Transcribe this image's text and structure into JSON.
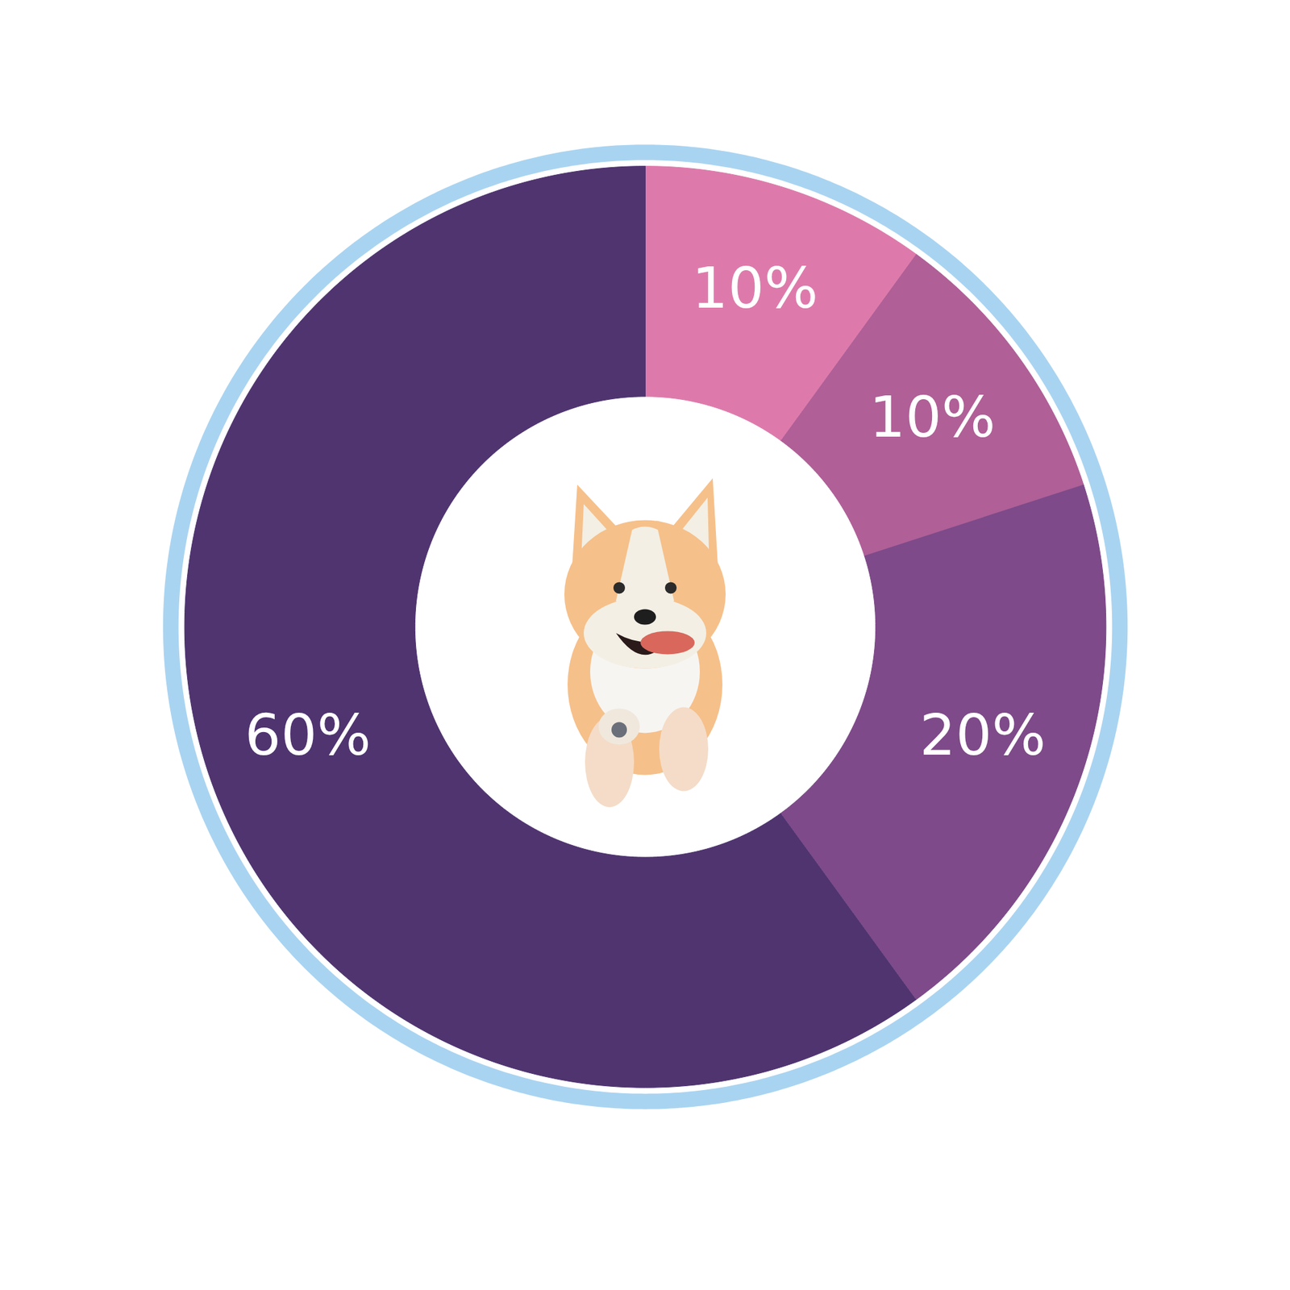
{
  "chart_data": {
    "type": "donut",
    "values": [
      10,
      10,
      20,
      60
    ],
    "value_labels": [
      "10%",
      "10%",
      "20%",
      "60%"
    ],
    "colors": [
      "#de7aab",
      "#b05f97",
      "#7e4a89",
      "#4f3470"
    ],
    "data_labels": true
  }
}
